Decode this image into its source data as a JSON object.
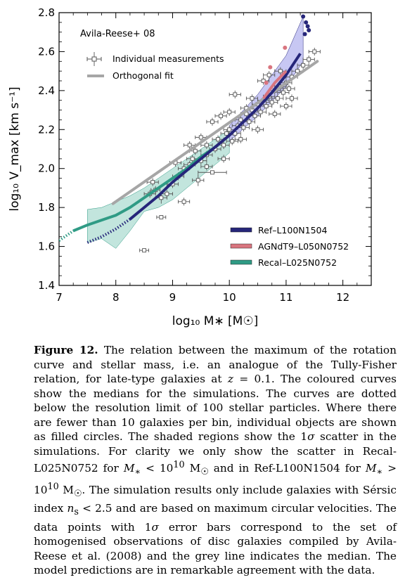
{
  "chart_data": {
    "type": "scatter",
    "xlabel": "log₁₀ M∗ [M☉]",
    "ylabel": "log₁₀ V_max [km s⁻¹]",
    "xlim": [
      7,
      12.5
    ],
    "ylim": [
      1.4,
      2.8
    ],
    "xticks": [
      "7",
      "8",
      "9",
      "10",
      "11",
      "12"
    ],
    "yticks": [
      "1.4",
      "1.6",
      "1.8",
      "2.0",
      "2.2",
      "2.4",
      "2.6",
      "2.8"
    ],
    "legend_position": "top-left",
    "legend_title": "Avila-Reese+ 08",
    "legend_obs": [
      "Individual measurements",
      "Orthogonal fit"
    ],
    "legend_sim": [
      "Ref–L100N1504",
      "AGNdT9–L050N0752",
      "Recal–L025N0752"
    ],
    "colors": {
      "ref": "#26267a",
      "ref_band": "#b9b9f0",
      "agn": "#d9757f",
      "recal": "#2f9b85",
      "recal_band": "#b3ded5",
      "fit": "#a6a6a6",
      "obs": "#555555"
    },
    "orthogonal_fit": {
      "x": [
        7.95,
        11.55
      ],
      "y": [
        1.82,
        2.55
      ]
    },
    "ref": {
      "x": [
        7.5,
        7.75,
        8.0,
        8.25,
        8.5,
        8.75,
        9.0,
        9.25,
        9.5,
        9.75,
        10.0,
        10.25,
        10.5,
        10.75,
        11.0,
        11.25
      ],
      "y": [
        1.62,
        1.65,
        1.69,
        1.74,
        1.8,
        1.86,
        1.93,
        1.99,
        2.05,
        2.11,
        2.17,
        2.24,
        2.31,
        2.39,
        2.48,
        2.59
      ],
      "dotted_below": 8.3,
      "band_x": [
        10.0,
        10.5,
        11.0,
        11.3
      ],
      "band_lo": [
        2.14,
        2.27,
        2.42,
        2.55
      ],
      "band_hi": [
        2.22,
        2.38,
        2.58,
        2.78
      ],
      "points": [
        [
          11.3,
          2.78
        ],
        [
          11.35,
          2.75
        ],
        [
          11.38,
          2.73
        ],
        [
          11.4,
          2.71
        ],
        [
          11.33,
          2.69
        ]
      ]
    },
    "agn": {
      "x": [
        10.6,
        10.7,
        10.8,
        10.9,
        11.0
      ],
      "y": [
        2.36,
        2.4,
        2.44,
        2.47,
        2.5
      ],
      "points": [
        [
          10.72,
          2.52
        ],
        [
          10.98,
          2.62
        ],
        [
          10.65,
          2.44
        ]
      ]
    },
    "recal": {
      "x": [
        7.0,
        7.25,
        7.5,
        7.75,
        8.0,
        8.25,
        8.5,
        8.75,
        9.0,
        9.25,
        9.5,
        9.75
      ],
      "y": [
        1.63,
        1.68,
        1.71,
        1.735,
        1.76,
        1.8,
        1.85,
        1.9,
        1.95,
        2.0,
        2.06,
        2.11
      ],
      "dotted_below": 7.35,
      "band_x": [
        7.5,
        7.75,
        8.0,
        8.25,
        8.5,
        8.75,
        9.0,
        9.25,
        9.5,
        9.75,
        10.0
      ],
      "band_lo": [
        1.62,
        1.64,
        1.59,
        1.68,
        1.78,
        1.8,
        1.84,
        1.9,
        1.96,
        2.02,
        2.08
      ],
      "band_hi": [
        1.79,
        1.8,
        1.83,
        1.86,
        1.9,
        1.95,
        2.0,
        2.05,
        2.1,
        2.15,
        2.2
      ],
      "points": [
        [
          10.65,
          2.36
        ]
      ]
    },
    "observations": [
      [
        8.5,
        1.58,
        0.08,
        0.01
      ],
      [
        8.8,
        1.75,
        0.08,
        0.01
      ],
      [
        9.2,
        1.83,
        0.1,
        0.02
      ],
      [
        9.7,
        1.98,
        0.25,
        0.01
      ],
      [
        9.45,
        1.94,
        0.1,
        0.03
      ],
      [
        8.65,
        1.93,
        0.1,
        0.02
      ],
      [
        8.7,
        1.89,
        0.08,
        0.02
      ],
      [
        8.6,
        1.87,
        0.1,
        0.02
      ],
      [
        8.8,
        1.85,
        0.1,
        0.03
      ],
      [
        8.9,
        1.87,
        0.1,
        0.02
      ],
      [
        9.0,
        1.92,
        0.1,
        0.02
      ],
      [
        9.1,
        1.96,
        0.1,
        0.02
      ],
      [
        9.05,
        2.03,
        0.1,
        0.02
      ],
      [
        9.2,
        2.0,
        0.1,
        0.02
      ],
      [
        9.3,
        2.02,
        0.1,
        0.02
      ],
      [
        9.35,
        2.05,
        0.1,
        0.02
      ],
      [
        9.5,
        2.04,
        0.1,
        0.02
      ],
      [
        9.6,
        2.07,
        0.1,
        0.02
      ],
      [
        9.4,
        2.09,
        0.1,
        0.02
      ],
      [
        9.6,
        2.12,
        0.1,
        0.02
      ],
      [
        9.75,
        2.1,
        0.1,
        0.02
      ],
      [
        9.8,
        2.15,
        0.1,
        0.02
      ],
      [
        9.9,
        2.12,
        0.1,
        0.02
      ],
      [
        9.95,
        2.18,
        0.1,
        0.02
      ],
      [
        10.0,
        2.2,
        0.1,
        0.02
      ],
      [
        10.05,
        2.14,
        0.1,
        0.02
      ],
      [
        10.1,
        2.18,
        0.1,
        0.02
      ],
      [
        10.15,
        2.22,
        0.1,
        0.02
      ],
      [
        10.2,
        2.25,
        0.1,
        0.02
      ],
      [
        10.25,
        2.21,
        0.1,
        0.02
      ],
      [
        10.3,
        2.28,
        0.1,
        0.02
      ],
      [
        10.35,
        2.24,
        0.1,
        0.02
      ],
      [
        10.4,
        2.3,
        0.1,
        0.02
      ],
      [
        10.45,
        2.27,
        0.1,
        0.02
      ],
      [
        10.5,
        2.33,
        0.1,
        0.02
      ],
      [
        10.55,
        2.29,
        0.1,
        0.02
      ],
      [
        10.6,
        2.35,
        0.1,
        0.02
      ],
      [
        10.65,
        2.32,
        0.1,
        0.02
      ],
      [
        10.7,
        2.37,
        0.1,
        0.02
      ],
      [
        10.75,
        2.34,
        0.1,
        0.02
      ],
      [
        10.8,
        2.4,
        0.1,
        0.02
      ],
      [
        10.85,
        2.36,
        0.1,
        0.02
      ],
      [
        10.9,
        2.42,
        0.1,
        0.02
      ],
      [
        10.95,
        2.39,
        0.1,
        0.02
      ],
      [
        11.0,
        2.44,
        0.1,
        0.02
      ],
      [
        11.05,
        2.41,
        0.1,
        0.02
      ],
      [
        11.1,
        2.47,
        0.1,
        0.02
      ],
      [
        11.2,
        2.5,
        0.1,
        0.02
      ],
      [
        11.3,
        2.53,
        0.1,
        0.02
      ],
      [
        11.4,
        2.56,
        0.1,
        0.02
      ],
      [
        11.5,
        2.6,
        0.1,
        0.02
      ],
      [
        10.1,
        2.38,
        0.1,
        0.02
      ],
      [
        10.4,
        2.36,
        0.1,
        0.02
      ],
      [
        10.6,
        2.45,
        0.1,
        0.02
      ],
      [
        9.7,
        2.24,
        0.1,
        0.02
      ],
      [
        9.85,
        2.27,
        0.1,
        0.02
      ],
      [
        10.0,
        2.29,
        0.1,
        0.02
      ],
      [
        10.3,
        2.31,
        0.1,
        0.02
      ],
      [
        9.5,
        2.16,
        0.1,
        0.02
      ],
      [
        9.3,
        2.12,
        0.1,
        0.02
      ],
      [
        10.5,
        2.2,
        0.1,
        0.02
      ],
      [
        10.2,
        2.15,
        0.1,
        0.02
      ],
      [
        9.9,
        2.05,
        0.1,
        0.02
      ],
      [
        9.6,
        2.01,
        0.1,
        0.02
      ],
      [
        10.8,
        2.28,
        0.1,
        0.02
      ],
      [
        11.0,
        2.32,
        0.1,
        0.02
      ],
      [
        11.1,
        2.36,
        0.1,
        0.02
      ],
      [
        10.7,
        2.48,
        0.1,
        0.02
      ],
      [
        10.9,
        2.5,
        0.1,
        0.02
      ]
    ]
  }
}
